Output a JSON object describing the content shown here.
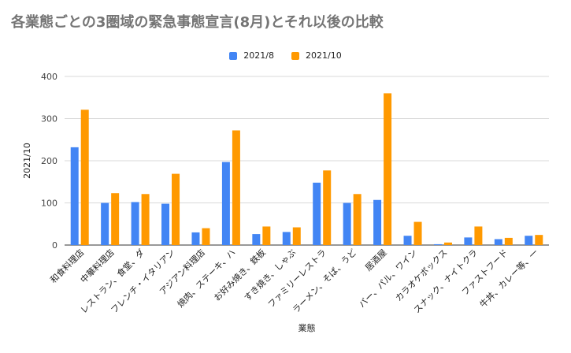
{
  "chart_data": {
    "type": "bar",
    "title": "各業態ごとの3圏域の緊急事態宣言(8月)とそれ以後の比較",
    "xlabel": "業態",
    "ylabel": "2021/10",
    "ylim": [
      0,
      400
    ],
    "yticks": [
      0,
      100,
      200,
      300,
      400
    ],
    "grid": true,
    "legend": "top-center",
    "categories": [
      "和食料理店",
      "中華料理店",
      "レストラン、食堂、ダ",
      "フレンチ・イタリアン",
      "アジアン料理店",
      "焼肉、ステーキ、ハ",
      "お好み焼き、鉄板",
      "すき焼き、しゃぶ",
      "ファミリーレストラ",
      "ラーメン、そば、うど",
      "居酒屋",
      "バー、パル、ワイン",
      "カラオケボックス",
      "スナック、ナイトクラ",
      "ファストフード",
      "牛丼、カレー等、一"
    ],
    "series": [
      {
        "name": "2021/8",
        "color": "#4285f4",
        "values": [
          232,
          100,
          102,
          98,
          30,
          197,
          26,
          31,
          148,
          100,
          107,
          22,
          2,
          18,
          14,
          22
        ]
      },
      {
        "name": "2021/10",
        "color": "#ff9900",
        "values": [
          321,
          123,
          121,
          169,
          40,
          272,
          44,
          42,
          177,
          121,
          360,
          55,
          6,
          44,
          17,
          24
        ]
      }
    ]
  }
}
